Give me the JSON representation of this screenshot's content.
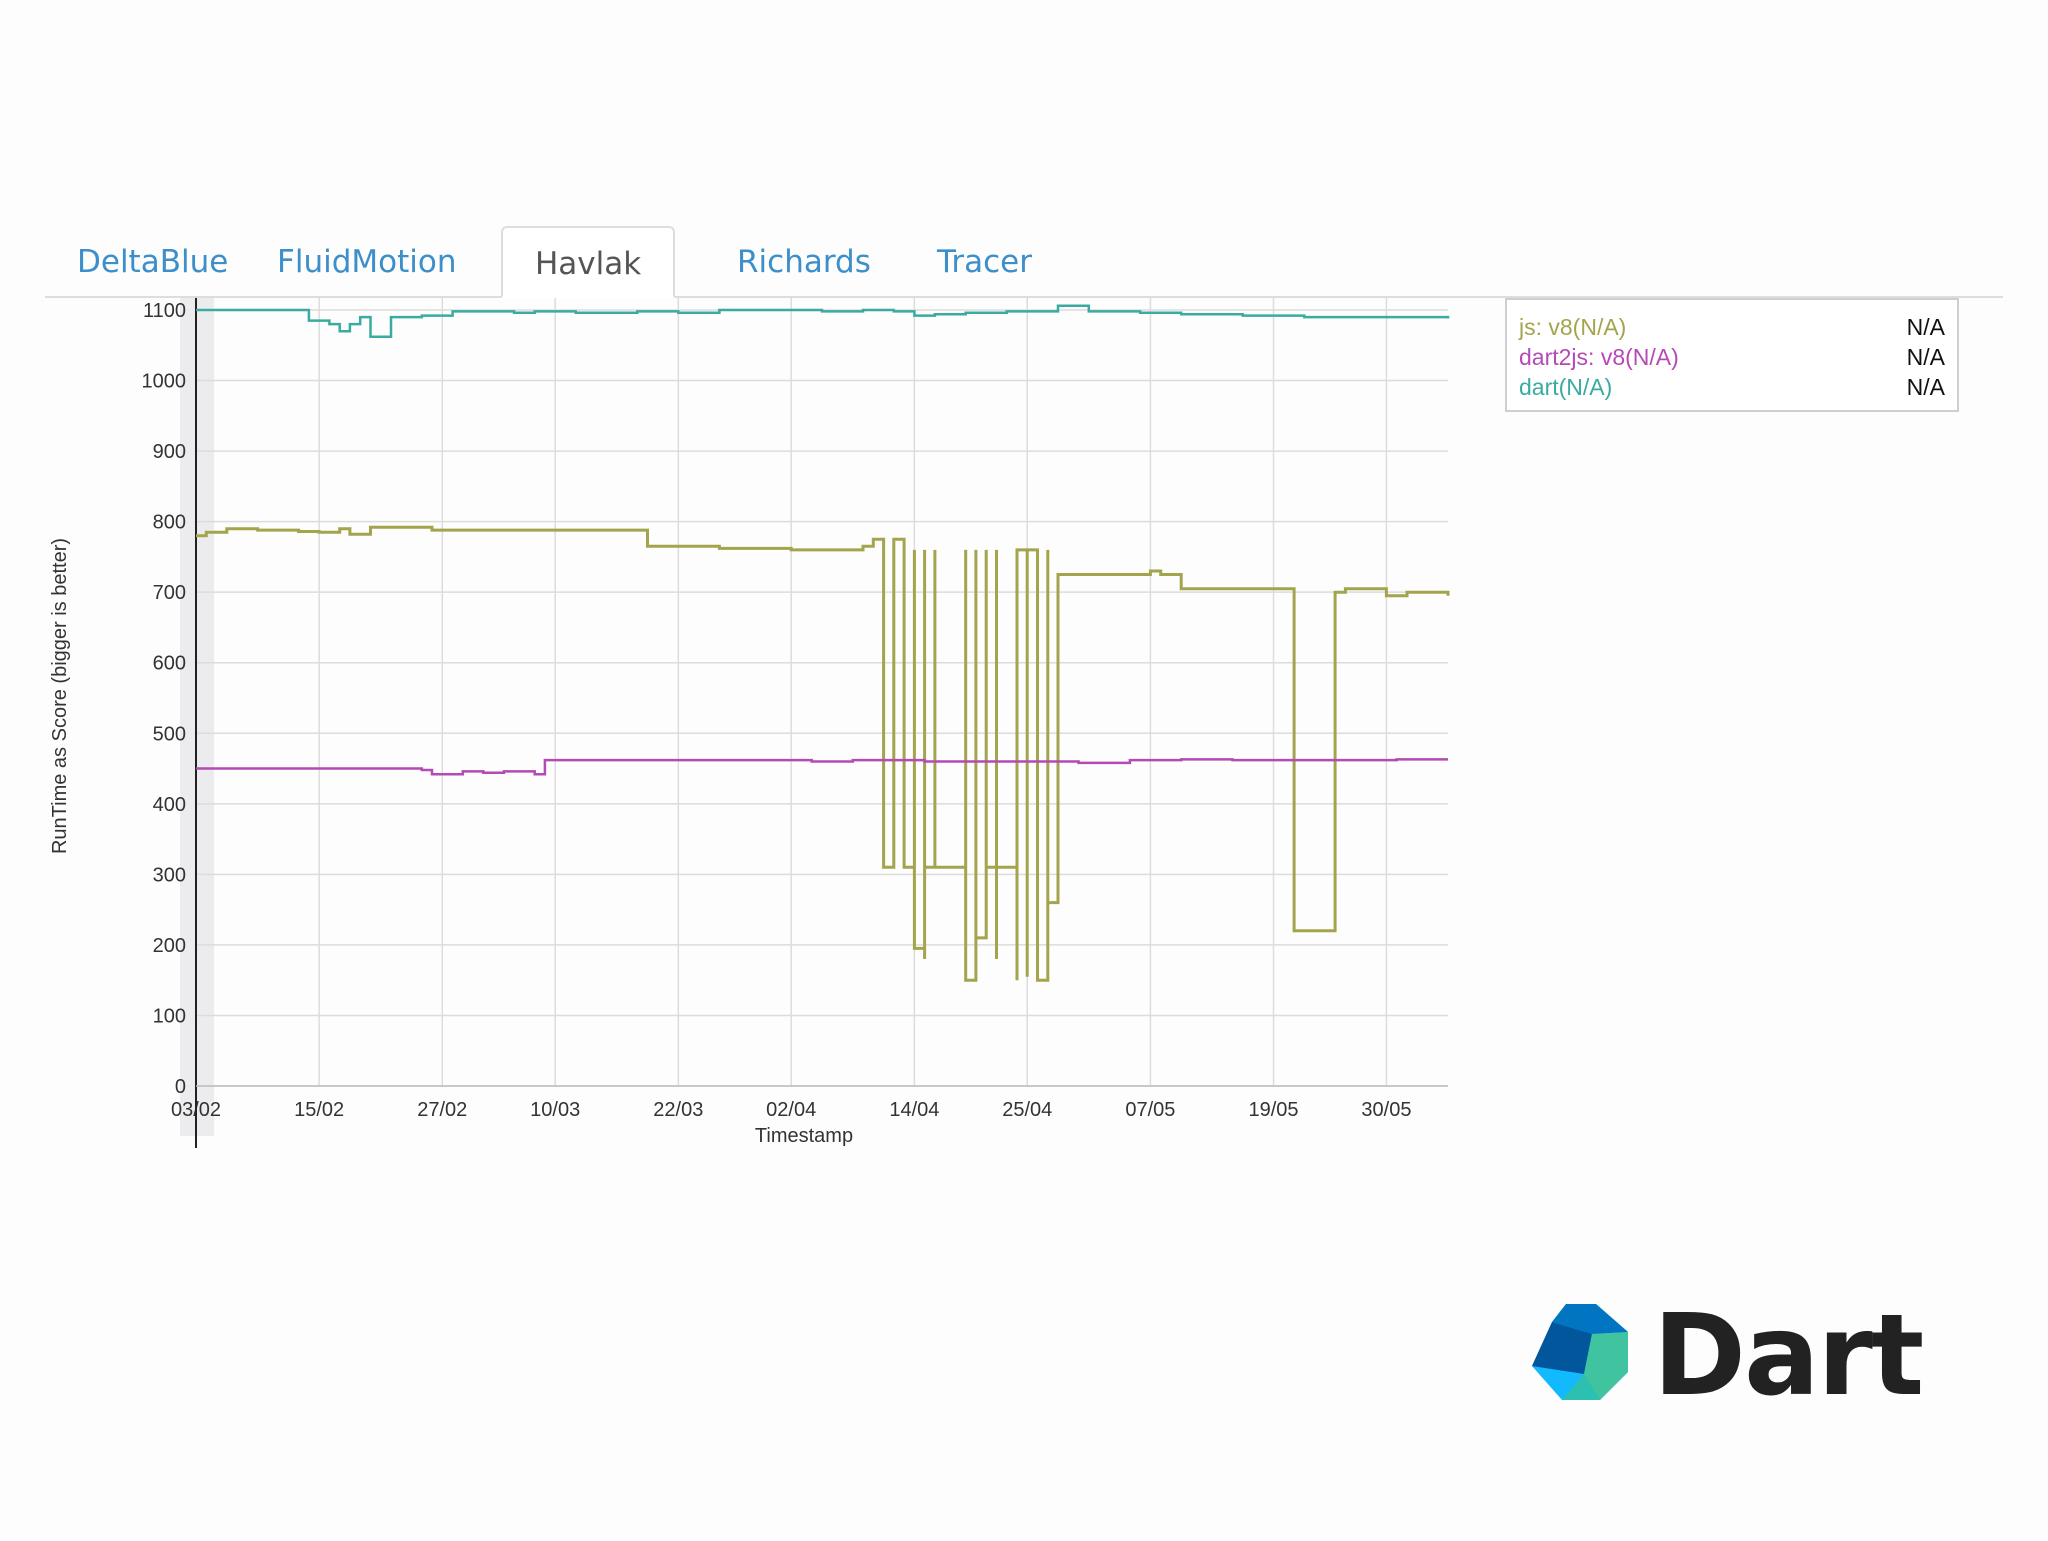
{
  "tabs": [
    {
      "label": "DeltaBlue",
      "active": false
    },
    {
      "label": "FluidMotion",
      "active": false
    },
    {
      "label": "Havlak",
      "active": true
    },
    {
      "label": "Richards",
      "active": false
    },
    {
      "label": "Tracer",
      "active": false
    }
  ],
  "legend": [
    {
      "label": "js: v8(N/A)",
      "value": "N/A",
      "color": "#a3a44c"
    },
    {
      "label": "dart2js: v8(N/A)",
      "value": "N/A",
      "color": "#b44ab4"
    },
    {
      "label": "dart(N/A)",
      "value": "N/A",
      "color": "#3aaba0"
    }
  ],
  "logo": {
    "text": "Dart",
    "icon": "dart-logo-icon",
    "colors": [
      "#0175c2",
      "#13b9fd",
      "#02569b",
      "#40c4a0"
    ]
  },
  "chart_data": {
    "type": "line",
    "title": "",
    "xlabel": "Timestamp",
    "ylabel": "RunTime as Score (bigger is better)",
    "ylim": [
      0,
      1100
    ],
    "yticks": [
      0,
      100,
      200,
      300,
      400,
      500,
      600,
      700,
      800,
      900,
      1000,
      1100
    ],
    "xlim": [
      "03/02",
      "05/06"
    ],
    "xticks": [
      "03/02",
      "15/02",
      "27/02",
      "10/03",
      "22/03",
      "02/04",
      "14/04",
      "25/04",
      "07/05",
      "19/05",
      "30/05"
    ],
    "grid": true,
    "legend_position": "top-right outside",
    "series": [
      {
        "name": "dart(N/A)",
        "color": "#3aaba0",
        "x": [
          "03/02",
          "13/02",
          "14/02",
          "16/02",
          "17/02",
          "18/02",
          "19/02",
          "20/02",
          "22/02",
          "23/02",
          "25/02",
          "27/02",
          "28/02",
          "03/03",
          "06/03",
          "08/03",
          "12/03",
          "18/03",
          "22/03",
          "26/03",
          "01/04",
          "05/04",
          "09/04",
          "12/04",
          "14/04",
          "16/04",
          "19/04",
          "23/04",
          "26/04",
          "28/04",
          "01/05",
          "06/05",
          "10/05",
          "16/05",
          "22/05",
          "28/05",
          "05/06"
        ],
        "values": [
          1100,
          1100,
          1085,
          1080,
          1070,
          1080,
          1090,
          1062,
          1090,
          1090,
          1092,
          1092,
          1098,
          1098,
          1096,
          1098,
          1096,
          1098,
          1096,
          1100,
          1100,
          1098,
          1100,
          1098,
          1092,
          1094,
          1096,
          1098,
          1098,
          1106,
          1098,
          1096,
          1094,
          1092,
          1090,
          1090,
          1088
        ]
      },
      {
        "name": "js: v8(N/A)",
        "color": "#a3a44c",
        "x": [
          "03/02",
          "04/02",
          "06/02",
          "09/02",
          "13/02",
          "15/02",
          "17/02",
          "18/02",
          "20/02",
          "26/02",
          "07/03",
          "18/03",
          "19/03",
          "26/03",
          "02/04",
          "08/04",
          "09/04",
          "10/04",
          "11/04",
          "11/04",
          "12/04",
          "12/04",
          "13/04",
          "13/04",
          "13/04",
          "13/04",
          "14/04",
          "14/04",
          "14/04",
          "15/04",
          "15/04",
          "15/04",
          "16/04",
          "16/04",
          "16/04",
          "16/04",
          "19/04",
          "19/04",
          "19/04",
          "20/04",
          "20/04",
          "20/04",
          "20/04",
          "21/04",
          "21/04",
          "21/04",
          "22/04",
          "22/04",
          "22/04",
          "22/04",
          "24/04",
          "24/04",
          "24/04",
          "25/04",
          "25/04",
          "25/04",
          "25/04",
          "26/04",
          "26/04",
          "26/04",
          "27/04",
          "27/04",
          "27/04",
          "28/04",
          "28/04",
          "07/05",
          "08/05",
          "10/05",
          "11/05",
          "16/05",
          "16/05",
          "20/05",
          "21/05",
          "21/05",
          "25/05",
          "25/05",
          "25/05",
          "26/05",
          "30/05",
          "01/06",
          "05/06"
        ],
        "values": [
          780,
          785,
          790,
          788,
          786,
          785,
          790,
          782,
          792,
          788,
          788,
          788,
          765,
          762,
          760,
          760,
          765,
          775,
          775,
          310,
          775,
          775,
          770,
          310,
          760,
          310,
          760,
          310,
          195,
          760,
          180,
          310,
          310,
          310,
          760,
          310,
          310,
          760,
          150,
          760,
          310,
          760,
          210,
          760,
          760,
          310,
          760,
          180,
          760,
          310,
          760,
          150,
          760,
          760,
          260,
          155,
          760,
          155,
          760,
          150,
          760,
          260,
          260,
          725,
          725,
          730,
          725,
          705,
          705,
          705,
          705,
          705,
          705,
          220,
          220,
          220,
          700,
          705,
          695,
          700,
          695
        ]
      },
      {
        "name": "dart2js: v8(N/A)",
        "color": "#b44ab4",
        "x": [
          "03/02",
          "13/02",
          "20/02",
          "25/02",
          "26/02",
          "01/03",
          "03/03",
          "05/03",
          "08/03",
          "09/03",
          "15/03",
          "25/03",
          "01/04",
          "04/04",
          "08/04",
          "15/04",
          "20/04",
          "25/04",
          "30/04",
          "05/05",
          "10/05",
          "15/05",
          "20/05",
          "25/05",
          "31/05",
          "05/06"
        ],
        "values": [
          450,
          450,
          450,
          448,
          442,
          446,
          444,
          446,
          442,
          462,
          462,
          462,
          462,
          460,
          462,
          460,
          460,
          460,
          458,
          462,
          463,
          462,
          462,
          462,
          463,
          463
        ]
      }
    ]
  }
}
